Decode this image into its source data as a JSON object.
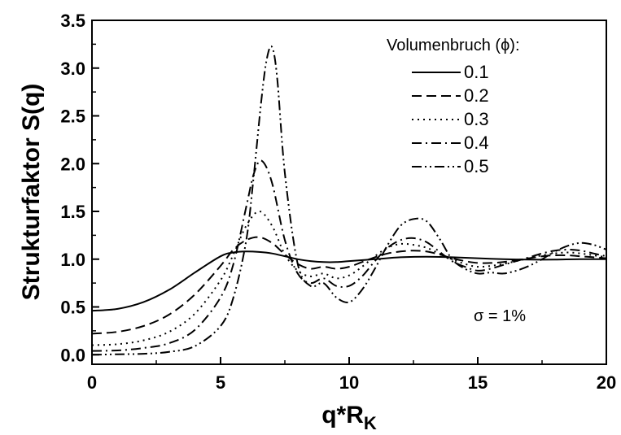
{
  "chart_data": {
    "type": "line",
    "xlabel": "q*R",
    "xlabel_subscript": "K",
    "ylabel": "Strukturfaktor S(q)",
    "xlim": [
      0,
      20
    ],
    "ylim": [
      -0.1,
      3.5
    ],
    "xticks": [
      "0",
      "5",
      "10",
      "15",
      "20"
    ],
    "yticks": [
      "0.0",
      "0.5",
      "1.0",
      "1.5",
      "2.0",
      "2.5",
      "3.0",
      "3.5"
    ],
    "grid": false,
    "legend": {
      "title": "Volumenbruch (ϕ):",
      "placement": "top-right"
    },
    "annotation": "σ = 1%",
    "series": [
      {
        "name": "0.1",
        "dash": "solid",
        "x": [
          0,
          1,
          2,
          3,
          4,
          5,
          5.5,
          6,
          6.5,
          7,
          7.5,
          8,
          8.5,
          9,
          9.5,
          10,
          11,
          12,
          13,
          14,
          15,
          16,
          17,
          18,
          19,
          20
        ],
        "y": [
          0.46,
          0.48,
          0.55,
          0.68,
          0.86,
          1.03,
          1.07,
          1.08,
          1.075,
          1.06,
          1.03,
          1.0,
          0.98,
          0.97,
          0.97,
          0.98,
          1.0,
          1.02,
          1.025,
          1.02,
          1.01,
          1.0,
          0.995,
          0.995,
          1.0,
          1.0
        ]
      },
      {
        "name": "0.2",
        "dash": "dash",
        "x": [
          0,
          1,
          2,
          3,
          4,
          5,
          5.5,
          6,
          6.5,
          7,
          7.5,
          8,
          8.5,
          9,
          9.5,
          10,
          10.5,
          11,
          11.5,
          12,
          12.5,
          13,
          13.5,
          14,
          14.5,
          15,
          15.5,
          16,
          16.5,
          17,
          17.5,
          18,
          18.5,
          19,
          19.5,
          20
        ],
        "y": [
          0.22,
          0.24,
          0.3,
          0.42,
          0.63,
          0.93,
          1.1,
          1.2,
          1.23,
          1.17,
          1.05,
          0.95,
          0.9,
          0.92,
          0.9,
          0.92,
          0.97,
          1.02,
          1.06,
          1.08,
          1.09,
          1.08,
          1.05,
          1.01,
          0.98,
          0.96,
          0.96,
          0.97,
          0.99,
          1.01,
          1.03,
          1.04,
          1.04,
          1.03,
          1.02,
          1.01
        ]
      },
      {
        "name": "0.3",
        "dash": "dot",
        "x": [
          0,
          1,
          2,
          3,
          4,
          5,
          5.5,
          6,
          6.5,
          7,
          7.5,
          8,
          8.5,
          9,
          9.5,
          10,
          10.5,
          11,
          11.5,
          12,
          12.5,
          13,
          13.5,
          14,
          14.5,
          15,
          15.5,
          16,
          16.5,
          17,
          17.5,
          18,
          18.5,
          19,
          19.5,
          20
        ],
        "y": [
          0.1,
          0.11,
          0.15,
          0.24,
          0.43,
          0.78,
          1.05,
          1.35,
          1.5,
          1.35,
          1.05,
          0.88,
          0.82,
          0.85,
          0.8,
          0.83,
          0.92,
          1.03,
          1.12,
          1.16,
          1.15,
          1.12,
          1.06,
          1.0,
          0.95,
          0.92,
          0.93,
          0.95,
          0.98,
          1.01,
          1.04,
          1.06,
          1.07,
          1.06,
          1.04,
          1.02
        ]
      },
      {
        "name": "0.4",
        "dash": "dashdot",
        "x": [
          0,
          1,
          2,
          3,
          4,
          5,
          5.5,
          6,
          6.3,
          6.6,
          7,
          7.5,
          8,
          8.5,
          9,
          9.5,
          10,
          10.5,
          11,
          11.5,
          12,
          12.5,
          13,
          13.5,
          14,
          14.5,
          15,
          15.5,
          16,
          16.5,
          17,
          17.5,
          18,
          18.5,
          19,
          19.5,
          20
        ],
        "y": [
          0.04,
          0.045,
          0.07,
          0.12,
          0.26,
          0.6,
          0.95,
          1.55,
          1.9,
          2.03,
          1.8,
          1.2,
          0.85,
          0.75,
          0.8,
          0.72,
          0.72,
          0.82,
          0.98,
          1.12,
          1.2,
          1.22,
          1.18,
          1.08,
          0.98,
          0.92,
          0.88,
          0.9,
          0.94,
          0.98,
          1.02,
          1.06,
          1.09,
          1.1,
          1.09,
          1.06,
          1.03
        ]
      },
      {
        "name": "0.5",
        "dash": "dashdotdot",
        "x": [
          0,
          1,
          2,
          3,
          4,
          5,
          5.5,
          6,
          6.3,
          6.6,
          6.8,
          7,
          7.2,
          7.5,
          8,
          8.5,
          9,
          9.5,
          10,
          10.5,
          11,
          11.5,
          12,
          12.5,
          13,
          13.5,
          14,
          14.5,
          15,
          15.5,
          16,
          16.5,
          17,
          17.5,
          18,
          18.5,
          19,
          19.5,
          20
        ],
        "y": [
          0.0,
          0.005,
          0.01,
          0.03,
          0.09,
          0.3,
          0.6,
          1.2,
          1.9,
          2.7,
          3.1,
          3.22,
          2.9,
          1.9,
          0.95,
          0.72,
          0.75,
          0.6,
          0.55,
          0.68,
          0.9,
          1.15,
          1.35,
          1.42,
          1.4,
          1.22,
          1.0,
          0.9,
          0.85,
          0.86,
          0.85,
          0.88,
          0.93,
          1.0,
          1.08,
          1.14,
          1.17,
          1.15,
          1.1
        ]
      }
    ]
  }
}
